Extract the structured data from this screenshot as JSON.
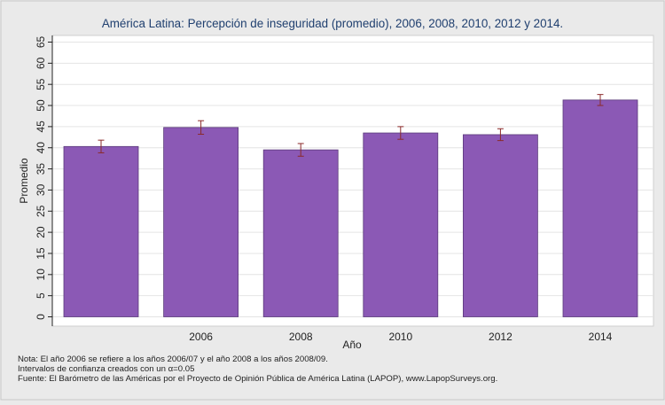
{
  "chart_data": {
    "type": "bar",
    "title": "América Latina: Percepción de inseguridad (promedio), 2006, 2008, 2010, 2012 y 2014.",
    "xlabel": "Año",
    "ylabel": "Promedio",
    "categories": [
      "",
      "2006",
      "2008",
      "2010",
      "2012",
      "2014"
    ],
    "values": [
      40.3,
      44.8,
      39.5,
      43.5,
      43.1,
      51.3
    ],
    "error_low": [
      38.8,
      43.2,
      38.0,
      42.0,
      41.7,
      50.0
    ],
    "error_high": [
      41.8,
      46.4,
      41.0,
      45.0,
      44.5,
      52.6
    ],
    "ylim": [
      0,
      65
    ],
    "yticks": [
      0,
      5,
      10,
      15,
      20,
      25,
      30,
      35,
      40,
      45,
      50,
      55,
      60,
      65
    ],
    "grid": true,
    "bar_color": "#8b59b5",
    "error_color": "#8b2a2a"
  },
  "notes": {
    "line1": "Nota: El año 2006 se refiere a los años 2006/07 y el año 2008 a los años 2008/09.",
    "line2": "Intervalos de confianza creados con un α=0.05",
    "line3": "Fuente: El Barómetro de las Américas por el Proyecto de Opinión Pública de América Latina (LAPOP), www.LapopSurveys.org."
  }
}
